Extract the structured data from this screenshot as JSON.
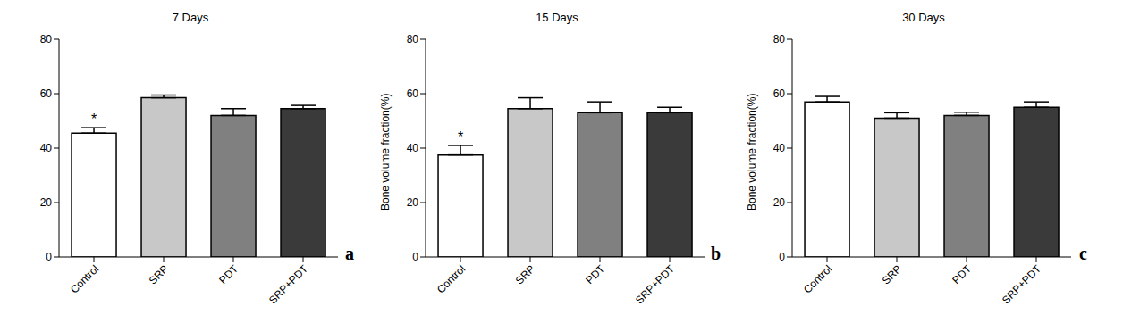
{
  "chart_data": [
    {
      "type": "bar",
      "title": "7 Days",
      "categories": [
        "Control",
        "SRP",
        "PDT",
        "SRP+PDT"
      ],
      "values": [
        45.5,
        58.5,
        52,
        54.5
      ],
      "errors": [
        2,
        1,
        2.5,
        1.2
      ],
      "colors": [
        "#ffffff",
        "#c8c8c8",
        "#808080",
        "#3a3a3a"
      ],
      "ylim": [
        0,
        80
      ],
      "yticks": [
        0,
        20,
        40,
        60,
        80
      ],
      "grid": false,
      "annotations": [
        {
          "text": "*",
          "category": "Control"
        },
        {
          "text": "a"
        }
      ]
    },
    {
      "type": "bar",
      "title": "15 Days",
      "y_label": "Bone volume fraction(%)",
      "categories": [
        "Control",
        "SRP",
        "PDT",
        "SRP+PDT"
      ],
      "values": [
        37.5,
        54.5,
        53,
        53
      ],
      "errors": [
        3.5,
        4,
        4,
        2
      ],
      "colors": [
        "#ffffff",
        "#c8c8c8",
        "#808080",
        "#3a3a3a"
      ],
      "ylim": [
        0,
        80
      ],
      "yticks": [
        0,
        20,
        40,
        60,
        80
      ],
      "grid": false,
      "annotations": [
        {
          "text": "*",
          "category": "Control"
        },
        {
          "text": "b"
        }
      ]
    },
    {
      "type": "bar",
      "title": "30 Days",
      "y_label": "Bone volume fraction(%)",
      "categories": [
        "Control",
        "SRP",
        "PDT",
        "SRP+PDT"
      ],
      "values": [
        57,
        51,
        52,
        55
      ],
      "errors": [
        2,
        2,
        1.2,
        2
      ],
      "colors": [
        "#ffffff",
        "#c8c8c8",
        "#808080",
        "#3a3a3a"
      ],
      "ylim": [
        0,
        80
      ],
      "yticks": [
        0,
        20,
        40,
        60,
        80
      ],
      "grid": false,
      "annotations": [
        {
          "text": "c"
        }
      ]
    }
  ]
}
